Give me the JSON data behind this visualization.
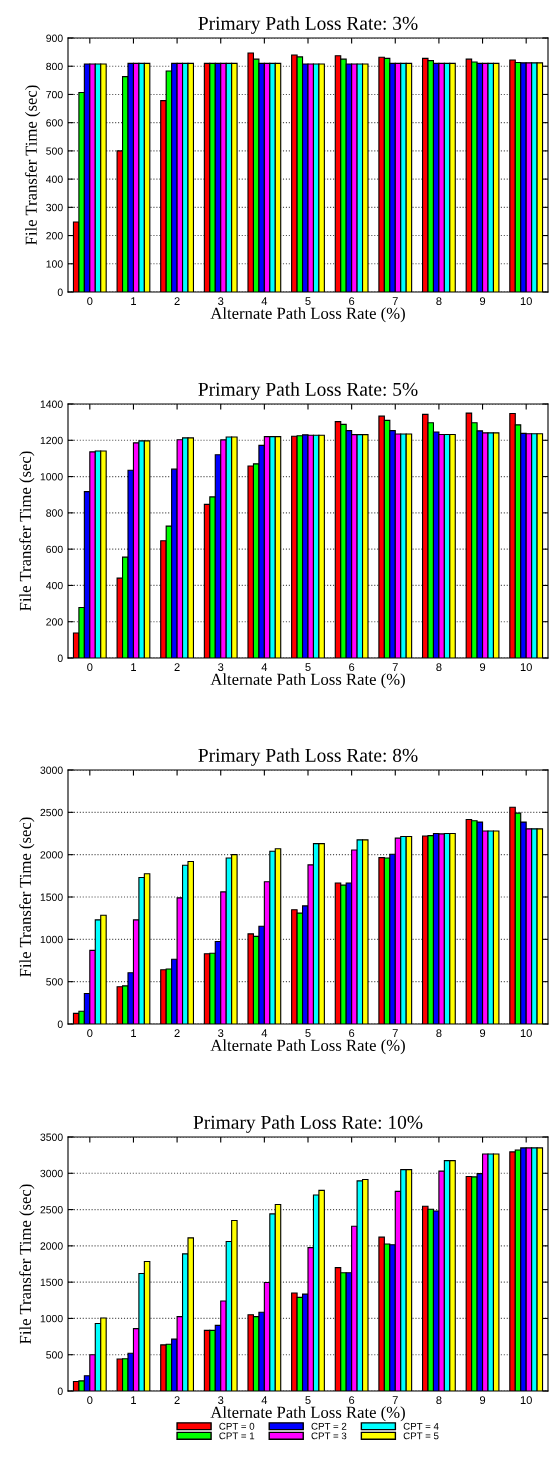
{
  "chart_data": [
    {
      "type": "bar",
      "title": "Primary Path Loss Rate: 3%",
      "xlabel": "Alternate Path Loss Rate (%)",
      "ylabel": "File Transfer Time (sec)",
      "categories": [
        "0",
        "1",
        "2",
        "3",
        "4",
        "5",
        "6",
        "7",
        "8",
        "9",
        "10"
      ],
      "ylim": [
        0,
        900
      ],
      "yticks": [
        0,
        100,
        200,
        300,
        400,
        500,
        600,
        700,
        800,
        900
      ],
      "grid": "y",
      "series": [
        {
          "color": "#ff0000",
          "values": [
            248,
            500,
            678,
            810,
            847,
            840,
            837,
            832,
            828,
            825,
            822
          ]
        },
        {
          "color": "#00ff00",
          "values": [
            707,
            763,
            783,
            810,
            825,
            833,
            825,
            828,
            820,
            815,
            813
          ]
        },
        {
          "color": "#0000ff",
          "values": [
            808,
            810,
            810,
            810,
            810,
            808,
            808,
            810,
            810,
            810,
            812
          ]
        },
        {
          "color": "#ff00ff",
          "values": [
            808,
            810,
            810,
            810,
            810,
            808,
            808,
            810,
            810,
            810,
            812
          ]
        },
        {
          "color": "#00ffff",
          "values": [
            808,
            810,
            810,
            810,
            810,
            808,
            808,
            810,
            810,
            810,
            812
          ]
        },
        {
          "color": "#ffff00",
          "values": [
            808,
            810,
            810,
            810,
            810,
            808,
            808,
            810,
            810,
            810,
            812
          ]
        }
      ]
    },
    {
      "type": "bar",
      "title": "Primary Path Loss Rate: 5%",
      "xlabel": "Alternate Path Loss Rate (%)",
      "ylabel": "File Transfer Time (sec)",
      "categories": [
        "0",
        "1",
        "2",
        "3",
        "4",
        "5",
        "6",
        "7",
        "8",
        "9",
        "10"
      ],
      "ylim": [
        0,
        1400
      ],
      "yticks": [
        0,
        200,
        400,
        600,
        800,
        1000,
        1200,
        1400
      ],
      "grid": "y",
      "series": [
        {
          "color": "#ff0000",
          "values": [
            138,
            440,
            646,
            847,
            1058,
            1222,
            1303,
            1333,
            1343,
            1350,
            1348
          ]
        },
        {
          "color": "#00ff00",
          "values": [
            278,
            556,
            727,
            888,
            1070,
            1225,
            1288,
            1310,
            1297,
            1297,
            1285
          ]
        },
        {
          "color": "#0000ff",
          "values": [
            917,
            1035,
            1041,
            1120,
            1172,
            1230,
            1253,
            1253,
            1246,
            1252,
            1238
          ]
        },
        {
          "color": "#ff00ff",
          "values": [
            1136,
            1186,
            1203,
            1202,
            1220,
            1228,
            1231,
            1235,
            1232,
            1241,
            1236
          ]
        },
        {
          "color": "#00ffff",
          "values": [
            1141,
            1197,
            1213,
            1218,
            1220,
            1228,
            1231,
            1235,
            1232,
            1241,
            1236
          ]
        },
        {
          "color": "#ffff00",
          "values": [
            1141,
            1197,
            1213,
            1218,
            1220,
            1228,
            1231,
            1235,
            1232,
            1241,
            1236
          ]
        }
      ]
    },
    {
      "type": "bar",
      "title": "Primary Path Loss Rate: 8%",
      "xlabel": "Alternate Path Loss Rate (%)",
      "ylabel": "File Transfer Time (sec)",
      "categories": [
        "0",
        "1",
        "2",
        "3",
        "4",
        "5",
        "6",
        "7",
        "8",
        "9",
        "10"
      ],
      "ylim": [
        0,
        3000
      ],
      "yticks": [
        0,
        500,
        1000,
        1500,
        2000,
        2500,
        3000
      ],
      "grid": "y",
      "series": [
        {
          "color": "#ff0000",
          "values": [
            125,
            440,
            640,
            830,
            1065,
            1350,
            1665,
            1965,
            2220,
            2415,
            2560
          ]
        },
        {
          "color": "#00ff00",
          "values": [
            150,
            450,
            650,
            835,
            1035,
            1310,
            1640,
            1960,
            2225,
            2400,
            2490
          ]
        },
        {
          "color": "#0000ff",
          "values": [
            360,
            605,
            765,
            975,
            1155,
            1395,
            1665,
            2005,
            2250,
            2385,
            2385
          ]
        },
        {
          "color": "#ff00ff",
          "values": [
            870,
            1230,
            1490,
            1560,
            1680,
            1880,
            2055,
            2195,
            2245,
            2280,
            2305
          ]
        },
        {
          "color": "#00ffff",
          "values": [
            1230,
            1730,
            1875,
            1960,
            2040,
            2130,
            2175,
            2215,
            2250,
            2280,
            2305
          ]
        },
        {
          "color": "#ffff00",
          "values": [
            1285,
            1775,
            1920,
            2000,
            2070,
            2130,
            2175,
            2215,
            2250,
            2280,
            2305
          ]
        }
      ]
    },
    {
      "type": "bar",
      "title": "Primary Path Loss Rate: 10%",
      "xlabel": "Alternate Path Loss Rate (%)",
      "ylabel": "File Transfer Time (sec)",
      "categories": [
        "0",
        "1",
        "2",
        "3",
        "4",
        "5",
        "6",
        "7",
        "8",
        "9",
        "10"
      ],
      "ylim": [
        0,
        3500
      ],
      "yticks": [
        0,
        500,
        1000,
        1500,
        2000,
        2500,
        3000,
        3500
      ],
      "grid": "y",
      "legend": "bottom",
      "series": [
        {
          "name": "CPT = 0",
          "color": "#ff0000",
          "values": [
            130,
            440,
            635,
            835,
            1050,
            1350,
            1700,
            2120,
            2545,
            2955,
            3295
          ]
        },
        {
          "name": "CPT = 1",
          "color": "#00ff00",
          "values": [
            140,
            445,
            645,
            835,
            1025,
            1290,
            1630,
            2025,
            2505,
            2950,
            3320
          ]
        },
        {
          "name": "CPT = 2",
          "color": "#0000ff",
          "values": [
            210,
            520,
            715,
            905,
            1085,
            1335,
            1630,
            2015,
            2480,
            2995,
            3350
          ]
        },
        {
          "name": "CPT = 3",
          "color": "#ff00ff",
          "values": [
            500,
            860,
            1025,
            1240,
            1495,
            1975,
            2270,
            2750,
            3030,
            3265,
            3350
          ]
        },
        {
          "name": "CPT = 4",
          "color": "#00ffff",
          "values": [
            930,
            1620,
            1890,
            2060,
            2440,
            2700,
            2895,
            3050,
            3175,
            3265,
            3350
          ]
        },
        {
          "name": "CPT = 5",
          "color": "#ffff00",
          "values": [
            1005,
            1785,
            2110,
            2350,
            2570,
            2765,
            2915,
            3050,
            3175,
            3265,
            3350
          ]
        }
      ]
    }
  ]
}
